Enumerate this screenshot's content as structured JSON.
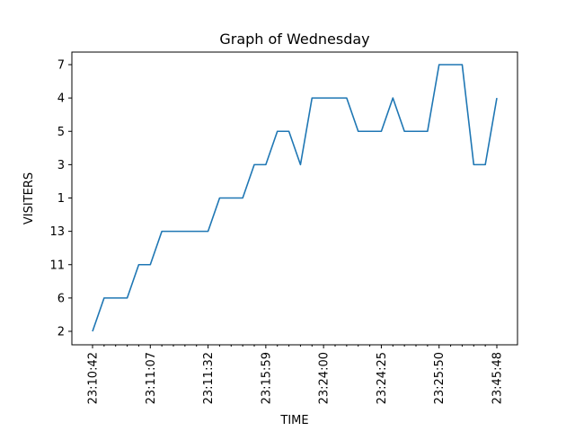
{
  "chart_data": {
    "type": "line",
    "title": "Graph of Wednesday",
    "xlabel": "TIME",
    "ylabel": "VISITERS",
    "y_categories": [
      "2",
      "6",
      "11",
      "13",
      "1",
      "3",
      "5",
      "4",
      "7"
    ],
    "x_tick_labels": [
      "23:10:42",
      "23:11:07",
      "23:11:32",
      "23:15:59",
      "23:24:00",
      "23:24:25",
      "23:25:50",
      "23:45:48"
    ],
    "series": [
      {
        "color": "#1f77b4",
        "values": [
          "2",
          "6",
          "6",
          "6",
          "11",
          "11",
          "13",
          "13",
          "13",
          "13",
          "13",
          "1",
          "1",
          "1",
          "3",
          "3",
          "5",
          "5",
          "3",
          "4",
          "4",
          "4",
          "4",
          "5",
          "5",
          "5",
          "4",
          "5",
          "5",
          "5",
          "7",
          "7",
          "7",
          "3",
          "3",
          "4"
        ]
      }
    ],
    "grid": false,
    "legend": "none"
  }
}
